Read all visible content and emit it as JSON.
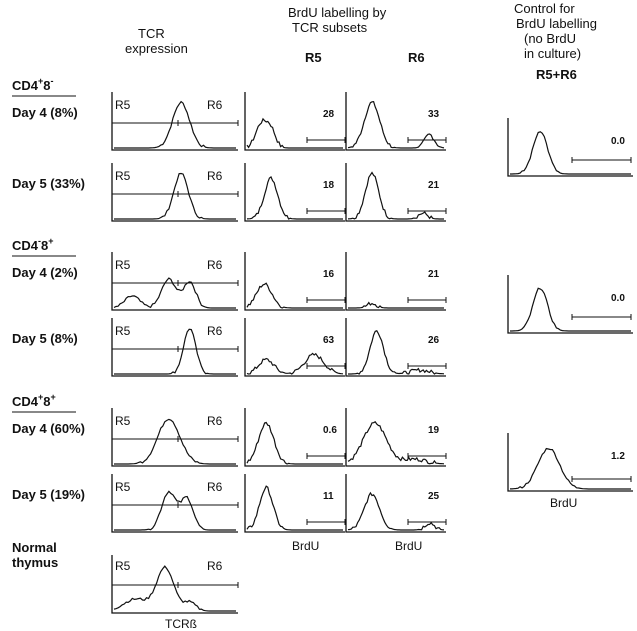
{
  "headers": {
    "tcr_expression": [
      "TCR",
      "expression"
    ],
    "brdu_by_subsets": [
      "BrdU labelling by",
      "TCR subsets"
    ],
    "control": [
      "Control for",
      "BrdU labelling",
      "(no BrdU",
      "in culture)"
    ],
    "col_r5": "R5",
    "col_r6": "R6",
    "col_control": "R5+R6"
  },
  "groups": [
    {
      "name": "CD4",
      "sup1": "+",
      "tail": "8",
      "sup2": "-"
    },
    {
      "name": "CD4",
      "sup1": "-",
      "tail": "8",
      "sup2": "+"
    },
    {
      "name": "CD4",
      "sup1": "+",
      "tail": "8",
      "sup2": "+"
    }
  ],
  "rows": [
    {
      "label": "Day 4  (8%)",
      "tcr_gates": [
        "R5",
        "R6"
      ],
      "r5_pct": "28",
      "r6_pct": "33"
    },
    {
      "label": "Day 5  (33%)",
      "tcr_gates": [
        "R5",
        "R6"
      ],
      "r5_pct": "18",
      "r6_pct": "21"
    },
    {
      "label": "Day 4  (2%)",
      "tcr_gates": [
        "R5",
        "R6"
      ],
      "r5_pct": "16",
      "r6_pct": "21"
    },
    {
      "label": "Day 5  (8%)",
      "tcr_gates": [
        "R5",
        "R6"
      ],
      "r5_pct": "63",
      "r6_pct": "26"
    },
    {
      "label": "Day 4  (60%)",
      "tcr_gates": [
        "R5",
        "R6"
      ],
      "r5_pct": "0.6",
      "r6_pct": "19"
    },
    {
      "label": "Day 5  (19%)",
      "tcr_gates": [
        "R5",
        "R6"
      ],
      "r5_pct": "11",
      "r6_pct": "25"
    }
  ],
  "controls": [
    {
      "pct": "0.0"
    },
    {
      "pct": "0.0"
    },
    {
      "pct": "1.2"
    }
  ],
  "normal": {
    "label": [
      "Normal",
      "thymus"
    ],
    "tcr_gates": [
      "R5",
      "R6"
    ]
  },
  "axis_labels": {
    "brdu_r5": "BrdU",
    "brdu_r6": "BrdU",
    "brdu_control": "BrdU",
    "tcr": "TCRß"
  }
}
